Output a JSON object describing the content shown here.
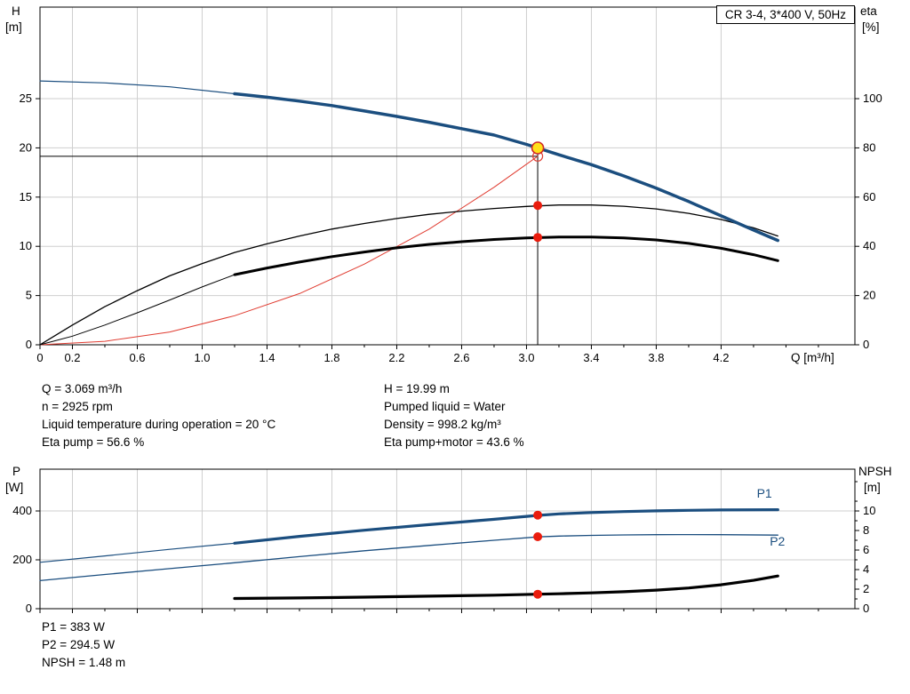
{
  "info": {
    "left": [
      "Q = 3.069 m³/h",
      "n = 2925 rpm",
      "Liquid temperature during operation = 20 °C",
      "Eta pump = 56.6 %"
    ],
    "right": [
      "H = 19.99 m",
      "Pumped liquid = Water",
      "Density = 998.2 kg/m³",
      "Eta pump+motor = 43.6 %"
    ],
    "bottom": [
      "P1 = 383 W",
      "P2 = 294.5 W",
      "NPSH = 1.48 m"
    ]
  },
  "colors": {
    "curve_blue": "#1b4e7f",
    "curve_black": "#000000",
    "system_red": "#e03c31",
    "dot_red": "#ea1c0d",
    "duty_yellow": "#ffe01a",
    "grid": "#cfcfcf"
  },
  "chart_data": [
    {
      "type": "line",
      "title": "CR 3-4, 3*400 V, 50Hz",
      "xlabel": "Q [m³/h]",
      "ylabel_left": "H",
      "ylabel_left_unit": "[m]",
      "ylabel_right": "eta",
      "ylabel_right_unit": "[%]",
      "xlim": [
        0,
        5.025
      ],
      "ylim": [
        0,
        34.3
      ],
      "grid": true,
      "grid_color": "#cfcfcf",
      "x_tick_values": [
        0,
        0.2,
        0.6,
        1,
        1.4,
        1.8,
        2.2,
        2.6,
        3,
        3.4,
        3.8,
        4.2
      ],
      "x_tick_labels": [
        "0",
        "0.2",
        "0.6",
        "1.0",
        "1.4",
        "1.8",
        "2.2",
        "2.6",
        "3.0",
        "3.4",
        "3.8",
        "4.2"
      ],
      "x_minor_ticks": [
        0.4,
        0.8,
        1.2,
        1.6,
        2,
        2.4,
        2.8,
        3.2,
        3.6,
        4,
        4.4,
        4.6,
        4.8
      ],
      "y_left_ticks": [
        0,
        5,
        10,
        15,
        20,
        25
      ],
      "y_right_ticks": [
        0,
        20,
        40,
        60,
        80,
        100
      ],
      "y_right_minor": [],
      "y_right_scale": 0.25,
      "duty_point": {
        "Q": 3.069,
        "H": 19.99,
        "eta_pump": 56.6,
        "eta_pump_motor": 43.6
      },
      "lines": [
        {
          "x1": 0,
          "y1": 19.15,
          "x2": 3.069,
          "y2": 19.15,
          "color": "#000000",
          "width": 1
        },
        {
          "x1": 3.069,
          "y1": 0,
          "x2": 3.069,
          "y2": 19.99,
          "color": "#000000",
          "width": 1
        }
      ],
      "series": [
        {
          "name": "system-curve",
          "color": "#e03c31",
          "width": 1,
          "points": [
            [
              0,
              0
            ],
            [
              0.4,
              0.35
            ],
            [
              0.8,
              1.3
            ],
            [
              1.2,
              2.95
            ],
            [
              1.6,
              5.2
            ],
            [
              2,
              8.2
            ],
            [
              2.4,
              11.75
            ],
            [
              2.8,
              16
            ],
            [
              3.069,
              19.15
            ]
          ]
        },
        {
          "name": "eta-pump",
          "color": "#000000",
          "width": 1.3,
          "scale": 0.25,
          "points": [
            [
              0,
              0
            ],
            [
              0.2,
              8
            ],
            [
              0.4,
              15.5
            ],
            [
              0.6,
              22
            ],
            [
              0.8,
              28
            ],
            [
              1,
              33
            ],
            [
              1.2,
              37.5
            ],
            [
              1.4,
              41
            ],
            [
              1.6,
              44.2
            ],
            [
              1.8,
              47
            ],
            [
              2,
              49.3
            ],
            [
              2.2,
              51.3
            ],
            [
              2.4,
              53
            ],
            [
              2.6,
              54.3
            ],
            [
              2.8,
              55.4
            ],
            [
              3,
              56.2
            ],
            [
              3.2,
              56.8
            ],
            [
              3.4,
              56.8
            ],
            [
              3.6,
              56.3
            ],
            [
              3.8,
              55.2
            ],
            [
              4,
              53.4
            ],
            [
              4.2,
              50.9
            ],
            [
              4.4,
              47.5
            ],
            [
              4.55,
              44.2
            ]
          ]
        },
        {
          "name": "eta-pump-motor-low-flow",
          "color": "#000000",
          "width": 1,
          "scale": 0.25,
          "points": [
            [
              0,
              0
            ],
            [
              0.2,
              3.5
            ],
            [
              0.4,
              8
            ],
            [
              0.6,
              13
            ],
            [
              0.8,
              18.2
            ],
            [
              1,
              23.5
            ],
            [
              1.2,
              28.5
            ]
          ]
        },
        {
          "name": "eta-pump-motor",
          "color": "#000000",
          "width": 3,
          "scale": 0.25,
          "points": [
            [
              1.2,
              28.5
            ],
            [
              1.4,
              31.2
            ],
            [
              1.6,
              33.6
            ],
            [
              1.8,
              35.8
            ],
            [
              2,
              37.7
            ],
            [
              2.2,
              39.4
            ],
            [
              2.4,
              40.8
            ],
            [
              2.6,
              41.9
            ],
            [
              2.8,
              42.8
            ],
            [
              3,
              43.4
            ],
            [
              3.2,
              43.8
            ],
            [
              3.4,
              43.8
            ],
            [
              3.6,
              43.4
            ],
            [
              3.8,
              42.6
            ],
            [
              4,
              41.2
            ],
            [
              4.2,
              39.2
            ],
            [
              4.4,
              36.6
            ],
            [
              4.55,
              34.2
            ]
          ]
        },
        {
          "name": "hq-curve-low-flow",
          "color": "#1b4e7f",
          "width": 1.2,
          "points": [
            [
              0,
              26.8
            ],
            [
              0.4,
              26.6
            ],
            [
              0.8,
              26.2
            ],
            [
              1.2,
              25.5
            ]
          ]
        },
        {
          "name": "hq-curve",
          "color": "#1b4e7f",
          "width": 3.5,
          "points": [
            [
              1.2,
              25.5
            ],
            [
              1.4,
              25.15
            ],
            [
              1.6,
              24.75
            ],
            [
              1.8,
              24.3
            ],
            [
              2,
              23.75
            ],
            [
              2.2,
              23.2
            ],
            [
              2.4,
              22.6
            ],
            [
              2.6,
              21.95
            ],
            [
              2.8,
              21.3
            ],
            [
              3,
              20.35
            ],
            [
              3.2,
              19.3
            ],
            [
              3.4,
              18.3
            ],
            [
              3.6,
              17.15
            ],
            [
              3.8,
              15.9
            ],
            [
              4,
              14.55
            ],
            [
              4.2,
              13.1
            ],
            [
              4.4,
              11.65
            ],
            [
              4.55,
              10.6
            ]
          ]
        }
      ],
      "markers": [
        {
          "name": "eta-pump-point",
          "x": 3.069,
          "y": 56.6,
          "scale": 0.25,
          "r": 5,
          "fill": "#ea1c0d",
          "stroke": "none",
          "sw": 0
        },
        {
          "name": "eta-pump-motor-point",
          "x": 3.069,
          "y": 43.6,
          "scale": 0.25,
          "r": 5,
          "fill": "#ea1c0d",
          "stroke": "none",
          "sw": 0
        },
        {
          "name": "requested-duty-point",
          "x": 3.069,
          "y": 19.15,
          "r": 5.5,
          "fill": "none",
          "stroke": "#e03c31",
          "sw": 1.2
        },
        {
          "name": "duty-point",
          "x": 3.069,
          "y": 19.99,
          "r": 6.5,
          "fill": "#ffe01a",
          "stroke": "#cf2a27",
          "sw": 1.6
        }
      ],
      "labels": []
    },
    {
      "type": "line",
      "title": "",
      "xlabel": "",
      "ylabel_left": "P",
      "ylabel_left_unit": "[W]",
      "ylabel_right": "NPSH",
      "ylabel_right_unit": "[m]",
      "xlim": [
        0,
        5.025
      ],
      "ylim": [
        0,
        571
      ],
      "grid": true,
      "grid_color": "#cfcfcf",
      "x_tick_values": [
        0,
        0.2,
        0.6,
        1,
        1.4,
        1.8,
        2.2,
        2.6,
        3,
        3.4,
        3.8,
        4.2
      ],
      "x_tick_labels": [
        "0",
        "0.2",
        "0.6",
        "1.0",
        "1.4",
        "1.8",
        "2.2",
        "2.6",
        "3.0",
        "3.4",
        "3.8",
        "4.2"
      ],
      "x_minor_ticks": [
        0.4,
        0.8,
        1.2,
        1.6,
        2,
        2.4,
        2.8,
        3.2,
        3.6,
        4,
        4.4,
        4.6,
        4.8
      ],
      "y_left_ticks": [
        0,
        200,
        400
      ],
      "y_right_ticks": [
        0,
        2,
        4,
        6,
        8,
        10
      ],
      "y_right_minor": [
        1,
        3,
        5,
        7,
        9,
        11,
        13
      ],
      "y_right_scale": 40,
      "duty_point": {
        "Q": 3.069,
        "P1": 383,
        "P2": 294.5,
        "NPSH": 1.48
      },
      "lines": [],
      "series": [
        {
          "name": "p1-curve-low-flow",
          "color": "#1b4e7f",
          "width": 1.2,
          "points": [
            [
              0,
              190
            ],
            [
              0.4,
              216
            ],
            [
              0.8,
              243
            ],
            [
              1.2,
              268
            ]
          ]
        },
        {
          "name": "p1-curve",
          "color": "#1b4e7f",
          "width": 3.2,
          "points": [
            [
              1.2,
              268
            ],
            [
              1.6,
              296
            ],
            [
              2,
              321
            ],
            [
              2.4,
              344
            ],
            [
              2.8,
              366
            ],
            [
              3.069,
              382
            ],
            [
              3.2,
              388
            ],
            [
              3.4,
              393.5
            ],
            [
              3.6,
              397.5
            ],
            [
              3.8,
              400.5
            ],
            [
              4,
              402.5
            ],
            [
              4.2,
              404
            ],
            [
              4.55,
              405
            ]
          ]
        },
        {
          "name": "p2-curve",
          "color": "#1b4e7f",
          "width": 1.3,
          "points": [
            [
              0,
              115
            ],
            [
              0.4,
              140
            ],
            [
              0.8,
              164
            ],
            [
              1.2,
              188
            ],
            [
              1.6,
              213
            ],
            [
              2,
              237
            ],
            [
              2.4,
              259
            ],
            [
              2.8,
              280
            ],
            [
              3.069,
              294
            ],
            [
              3.2,
              297
            ],
            [
              3.4,
              300
            ],
            [
              3.6,
              302
            ],
            [
              3.8,
              303
            ],
            [
              4,
              303.5
            ],
            [
              4.2,
              303
            ],
            [
              4.55,
              301
            ]
          ]
        },
        {
          "name": "npsh-curve",
          "color": "#000000",
          "width": 3.2,
          "scale": 40,
          "points": [
            [
              1.2,
              1.05
            ],
            [
              1.6,
              1.1
            ],
            [
              2,
              1.18
            ],
            [
              2.4,
              1.28
            ],
            [
              2.8,
              1.38
            ],
            [
              3.069,
              1.48
            ],
            [
              3.2,
              1.53
            ],
            [
              3.4,
              1.62
            ],
            [
              3.6,
              1.74
            ],
            [
              3.8,
              1.9
            ],
            [
              4,
              2.12
            ],
            [
              4.2,
              2.45
            ],
            [
              4.4,
              2.9
            ],
            [
              4.55,
              3.35
            ]
          ]
        }
      ],
      "markers": [
        {
          "name": "p1-point",
          "x": 3.069,
          "y": 383,
          "r": 5,
          "fill": "#ea1c0d",
          "stroke": "none",
          "sw": 0
        },
        {
          "name": "p2-point",
          "x": 3.069,
          "y": 294.5,
          "r": 5,
          "fill": "#ea1c0d",
          "stroke": "none",
          "sw": 0
        },
        {
          "name": "npsh-point",
          "x": 3.069,
          "y": 1.48,
          "scale": 40,
          "r": 5,
          "fill": "#ea1c0d",
          "stroke": "none",
          "sw": 0
        }
      ],
      "labels": [
        {
          "text": "P1",
          "x": 4.42,
          "y": 455,
          "color": "#1b4e7f"
        },
        {
          "text": "P2",
          "x": 4.5,
          "y": 258,
          "color": "#1b4e7f"
        }
      ]
    }
  ]
}
